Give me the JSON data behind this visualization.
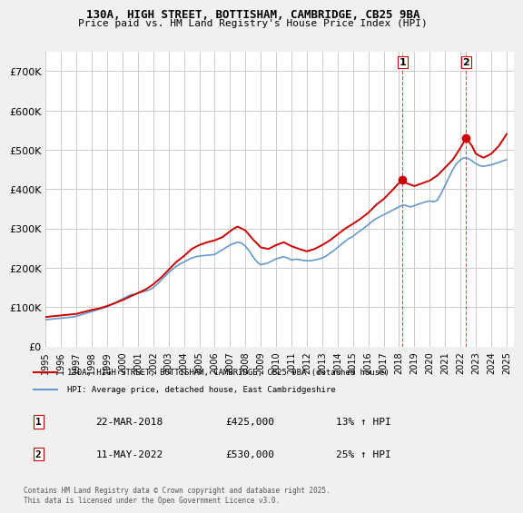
{
  "title_line1": "130A, HIGH STREET, BOTTISHAM, CAMBRIDGE, CB25 9BA",
  "title_line2": "Price paid vs. HM Land Registry's House Price Index (HPI)",
  "ylabel": "",
  "ylim": [
    0,
    750000
  ],
  "yticks": [
    0,
    100000,
    200000,
    300000,
    400000,
    500000,
    600000,
    700000
  ],
  "ytick_labels": [
    "£0",
    "£100K",
    "£200K",
    "£300K",
    "£400K",
    "£500K",
    "£600K",
    "£700K"
  ],
  "xlim_start": 1995,
  "xlim_end": 2025.5,
  "xticks": [
    1995,
    1996,
    1997,
    1998,
    1999,
    2000,
    2001,
    2002,
    2003,
    2004,
    2005,
    2006,
    2007,
    2008,
    2009,
    2010,
    2011,
    2012,
    2013,
    2014,
    2015,
    2016,
    2017,
    2018,
    2019,
    2020,
    2021,
    2022,
    2023,
    2024,
    2025
  ],
  "red_color": "#cc0000",
  "blue_color": "#6699cc",
  "marker_color": "#cc0000",
  "vline_color": "#cc0000",
  "background_color": "#f0f0f0",
  "plot_bg_color": "#ffffff",
  "grid_color": "#cccccc",
  "legend_label_red": "130A, HIGH STREET, BOTTISHAM, CAMBRIDGE, CB25 9BA (detached house)",
  "legend_label_blue": "HPI: Average price, detached house, East Cambridgeshire",
  "event1_x": 2018.22,
  "event1_label": "1",
  "event1_price": "£425,000",
  "event1_hpi": "13% ↑ HPI",
  "event1_date": "22-MAR-2018",
  "event2_x": 2022.36,
  "event2_label": "2",
  "event2_price": "£530,000",
  "event2_hpi": "25% ↑ HPI",
  "event2_date": "11-MAY-2022",
  "footer": "Contains HM Land Registry data © Crown copyright and database right 2025.\nThis data is licensed under the Open Government Licence v3.0.",
  "hpi_data": {
    "years": [
      1995.0,
      1995.25,
      1995.5,
      1995.75,
      1996.0,
      1996.25,
      1996.5,
      1996.75,
      1997.0,
      1997.25,
      1997.5,
      1997.75,
      1998.0,
      1998.25,
      1998.5,
      1998.75,
      1999.0,
      1999.25,
      1999.5,
      1999.75,
      2000.0,
      2000.25,
      2000.5,
      2000.75,
      2001.0,
      2001.25,
      2001.5,
      2001.75,
      2002.0,
      2002.25,
      2002.5,
      2002.75,
      2003.0,
      2003.25,
      2003.5,
      2003.75,
      2004.0,
      2004.25,
      2004.5,
      2004.75,
      2005.0,
      2005.25,
      2005.5,
      2005.75,
      2006.0,
      2006.25,
      2006.5,
      2006.75,
      2007.0,
      2007.25,
      2007.5,
      2007.75,
      2008.0,
      2008.25,
      2008.5,
      2008.75,
      2009.0,
      2009.25,
      2009.5,
      2009.75,
      2010.0,
      2010.25,
      2010.5,
      2010.75,
      2011.0,
      2011.25,
      2011.5,
      2011.75,
      2012.0,
      2012.25,
      2012.5,
      2012.75,
      2013.0,
      2013.25,
      2013.5,
      2013.75,
      2014.0,
      2014.25,
      2014.5,
      2014.75,
      2015.0,
      2015.25,
      2015.5,
      2015.75,
      2016.0,
      2016.25,
      2016.5,
      2016.75,
      2017.0,
      2017.25,
      2017.5,
      2017.75,
      2018.0,
      2018.25,
      2018.5,
      2018.75,
      2019.0,
      2019.25,
      2019.5,
      2019.75,
      2020.0,
      2020.25,
      2020.5,
      2020.75,
      2021.0,
      2021.25,
      2021.5,
      2021.75,
      2022.0,
      2022.25,
      2022.5,
      2022.75,
      2023.0,
      2023.25,
      2023.5,
      2023.75,
      2024.0,
      2024.25,
      2024.5,
      2024.75,
      2025.0
    ],
    "values": [
      68000,
      69000,
      70000,
      71000,
      72000,
      73000,
      74000,
      75000,
      77000,
      80000,
      83000,
      86000,
      89000,
      92000,
      95000,
      98000,
      101000,
      106000,
      111000,
      116000,
      121000,
      126000,
      131000,
      133000,
      135000,
      138000,
      141000,
      144000,
      150000,
      158000,
      168000,
      178000,
      188000,
      196000,
      204000,
      210000,
      215000,
      220000,
      225000,
      228000,
      230000,
      231000,
      232000,
      233000,
      234000,
      240000,
      246000,
      252000,
      258000,
      262000,
      265000,
      263000,
      255000,
      243000,
      228000,
      215000,
      208000,
      210000,
      213000,
      218000,
      223000,
      226000,
      228000,
      225000,
      220000,
      222000,
      221000,
      219000,
      218000,
      218000,
      220000,
      222000,
      225000,
      230000,
      237000,
      244000,
      252000,
      260000,
      268000,
      275000,
      280000,
      288000,
      295000,
      302000,
      310000,
      318000,
      325000,
      330000,
      335000,
      340000,
      345000,
      350000,
      355000,
      360000,
      358000,
      355000,
      358000,
      362000,
      365000,
      368000,
      370000,
      368000,
      372000,
      390000,
      410000,
      430000,
      450000,
      465000,
      475000,
      480000,
      478000,
      472000,
      465000,
      460000,
      458000,
      460000,
      462000,
      465000,
      468000,
      472000,
      475000
    ]
  },
  "price_data": {
    "years": [
      1995.0,
      1995.5,
      1996.0,
      1996.5,
      1997.0,
      1997.5,
      1998.0,
      1998.5,
      1999.0,
      1999.5,
      2000.0,
      2000.5,
      2001.0,
      2001.5,
      2002.0,
      2002.5,
      2003.0,
      2003.5,
      2004.0,
      2004.5,
      2005.0,
      2005.5,
      2006.0,
      2006.5,
      2007.0,
      2007.25,
      2007.5,
      2008.0,
      2008.5,
      2009.0,
      2009.5,
      2010.0,
      2010.5,
      2011.0,
      2011.5,
      2012.0,
      2012.5,
      2013.0,
      2013.5,
      2014.0,
      2014.5,
      2015.0,
      2015.5,
      2016.0,
      2016.5,
      2017.0,
      2017.5,
      2018.22,
      2018.5,
      2019.0,
      2019.5,
      2020.0,
      2020.5,
      2021.0,
      2021.5,
      2022.0,
      2022.36,
      2022.75,
      2023.0,
      2023.5,
      2024.0,
      2024.5,
      2025.0
    ],
    "values": [
      75000,
      77000,
      79000,
      81000,
      83000,
      88000,
      93000,
      97000,
      103000,
      110000,
      118000,
      127000,
      136000,
      145000,
      158000,
      175000,
      195000,
      215000,
      230000,
      248000,
      258000,
      265000,
      270000,
      278000,
      293000,
      300000,
      305000,
      295000,
      272000,
      252000,
      248000,
      258000,
      265000,
      255000,
      248000,
      242000,
      248000,
      258000,
      270000,
      285000,
      300000,
      312000,
      325000,
      340000,
      360000,
      375000,
      395000,
      425000,
      415000,
      408000,
      415000,
      422000,
      435000,
      455000,
      475000,
      505000,
      530000,
      510000,
      490000,
      480000,
      490000,
      510000,
      540000
    ]
  }
}
